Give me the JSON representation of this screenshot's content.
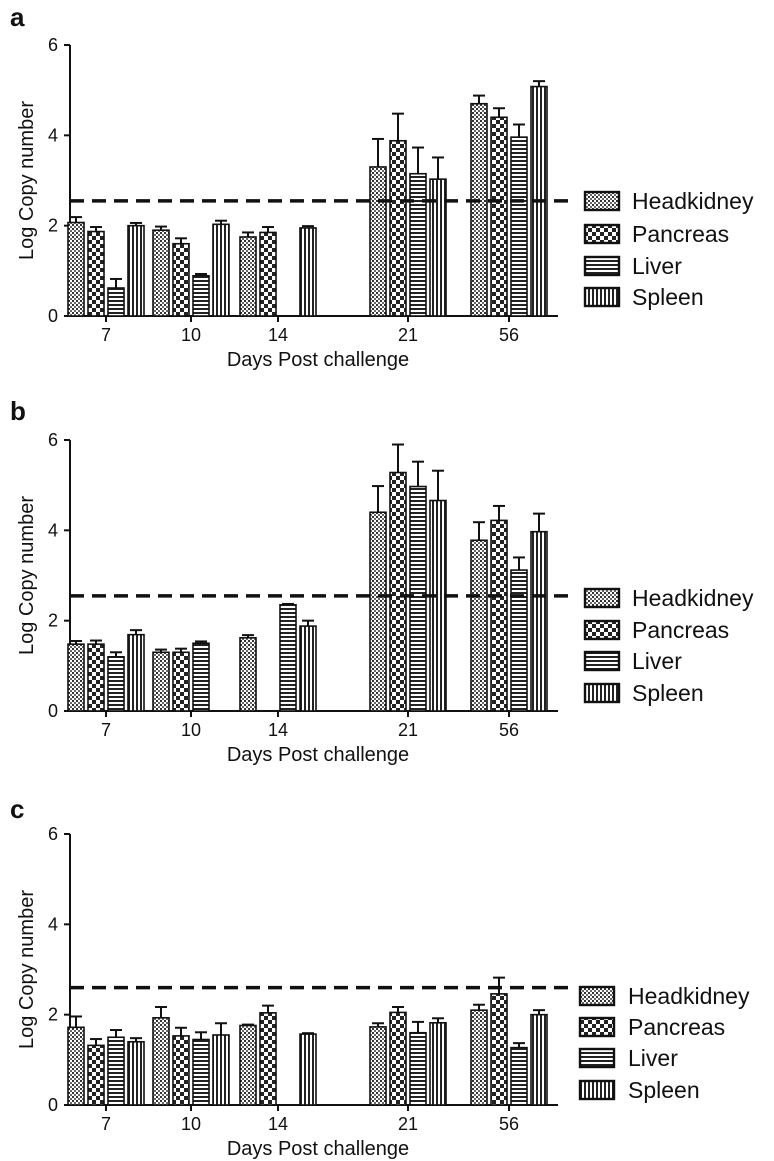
{
  "figure": {
    "panels": [
      "a",
      "b",
      "c"
    ]
  },
  "legend_labels": [
    "Headkidney",
    "Pancreas",
    "Liver",
    "Spleen"
  ],
  "chart_data": [
    {
      "panel": "a",
      "type": "bar",
      "xlabel": "Days Post challenge",
      "ylabel": "Log Copy number",
      "ylim": [
        0,
        6
      ],
      "yticks": [
        0,
        2,
        4,
        6
      ],
      "categories": [
        "7",
        "10",
        "14",
        "21",
        "56"
      ],
      "threshold": 2.55,
      "legend_position": "right",
      "series": [
        {
          "name": "Headkidney",
          "pattern": "dots",
          "values": [
            2.07,
            1.9,
            1.75,
            3.3,
            4.7
          ],
          "errors": [
            0.12,
            0.08,
            0.1,
            0.62,
            0.18
          ]
        },
        {
          "name": "Pancreas",
          "pattern": "checker",
          "values": [
            1.87,
            1.6,
            1.85,
            3.88,
            4.4
          ],
          "errors": [
            0.1,
            0.12,
            0.12,
            0.6,
            0.2
          ]
        },
        {
          "name": "Liver",
          "pattern": "hlines",
          "values": [
            0.62,
            0.89,
            null,
            3.15,
            3.96
          ],
          "errors": [
            0.2,
            0.04,
            null,
            0.58,
            0.28
          ]
        },
        {
          "name": "Spleen",
          "pattern": "vlines",
          "values": [
            2.0,
            2.03,
            1.95,
            3.03,
            5.08
          ],
          "errors": [
            0.06,
            0.08,
            0.04,
            0.48,
            0.12
          ]
        }
      ]
    },
    {
      "panel": "b",
      "type": "bar",
      "xlabel": "Days Post challenge",
      "ylabel": "Log Copy number",
      "ylim": [
        0,
        6
      ],
      "yticks": [
        0,
        2,
        4,
        6
      ],
      "categories": [
        "7",
        "10",
        "14",
        "21",
        "56"
      ],
      "threshold": 2.55,
      "legend_position": "right",
      "series": [
        {
          "name": "Headkidney",
          "pattern": "dots",
          "values": [
            1.48,
            1.3,
            1.62,
            4.4,
            3.78
          ],
          "errors": [
            0.07,
            0.06,
            0.06,
            0.58,
            0.4
          ]
        },
        {
          "name": "Pancreas",
          "pattern": "checker",
          "values": [
            1.48,
            1.3,
            null,
            5.28,
            4.22
          ],
          "errors": [
            0.08,
            0.08,
            null,
            0.62,
            0.32
          ]
        },
        {
          "name": "Liver",
          "pattern": "hlines",
          "values": [
            1.2,
            1.5,
            2.35,
            4.97,
            3.12
          ],
          "errors": [
            0.1,
            0.04,
            0.02,
            0.55,
            0.28
          ]
        },
        {
          "name": "Spleen",
          "pattern": "vlines",
          "values": [
            1.69,
            null,
            1.88,
            4.66,
            3.97
          ],
          "errors": [
            0.1,
            null,
            0.12,
            0.66,
            0.4
          ]
        }
      ]
    },
    {
      "panel": "c",
      "type": "bar",
      "xlabel": "Days Post challenge",
      "ylabel": "Log Copy number",
      "ylim": [
        0,
        6
      ],
      "yticks": [
        0,
        2,
        4,
        6
      ],
      "categories": [
        "7",
        "10",
        "14",
        "21",
        "56"
      ],
      "threshold": 2.6,
      "legend_position": "right",
      "series": [
        {
          "name": "Headkidney",
          "pattern": "dots",
          "values": [
            1.72,
            1.93,
            1.76,
            1.73,
            2.1
          ],
          "errors": [
            0.24,
            0.24,
            0.02,
            0.08,
            0.12
          ]
        },
        {
          "name": "Pancreas",
          "pattern": "checker",
          "values": [
            1.32,
            1.53,
            2.04,
            2.05,
            2.46
          ],
          "errors": [
            0.14,
            0.18,
            0.16,
            0.12,
            0.36
          ]
        },
        {
          "name": "Liver",
          "pattern": "hlines",
          "values": [
            1.5,
            1.45,
            null,
            1.6,
            1.27
          ],
          "errors": [
            0.16,
            0.16,
            null,
            0.24,
            0.1
          ]
        },
        {
          "name": "Spleen",
          "pattern": "vlines",
          "values": [
            1.4,
            1.55,
            1.57,
            1.82,
            2.0
          ],
          "errors": [
            0.08,
            0.26,
            0.02,
            0.1,
            0.1
          ]
        }
      ]
    }
  ]
}
